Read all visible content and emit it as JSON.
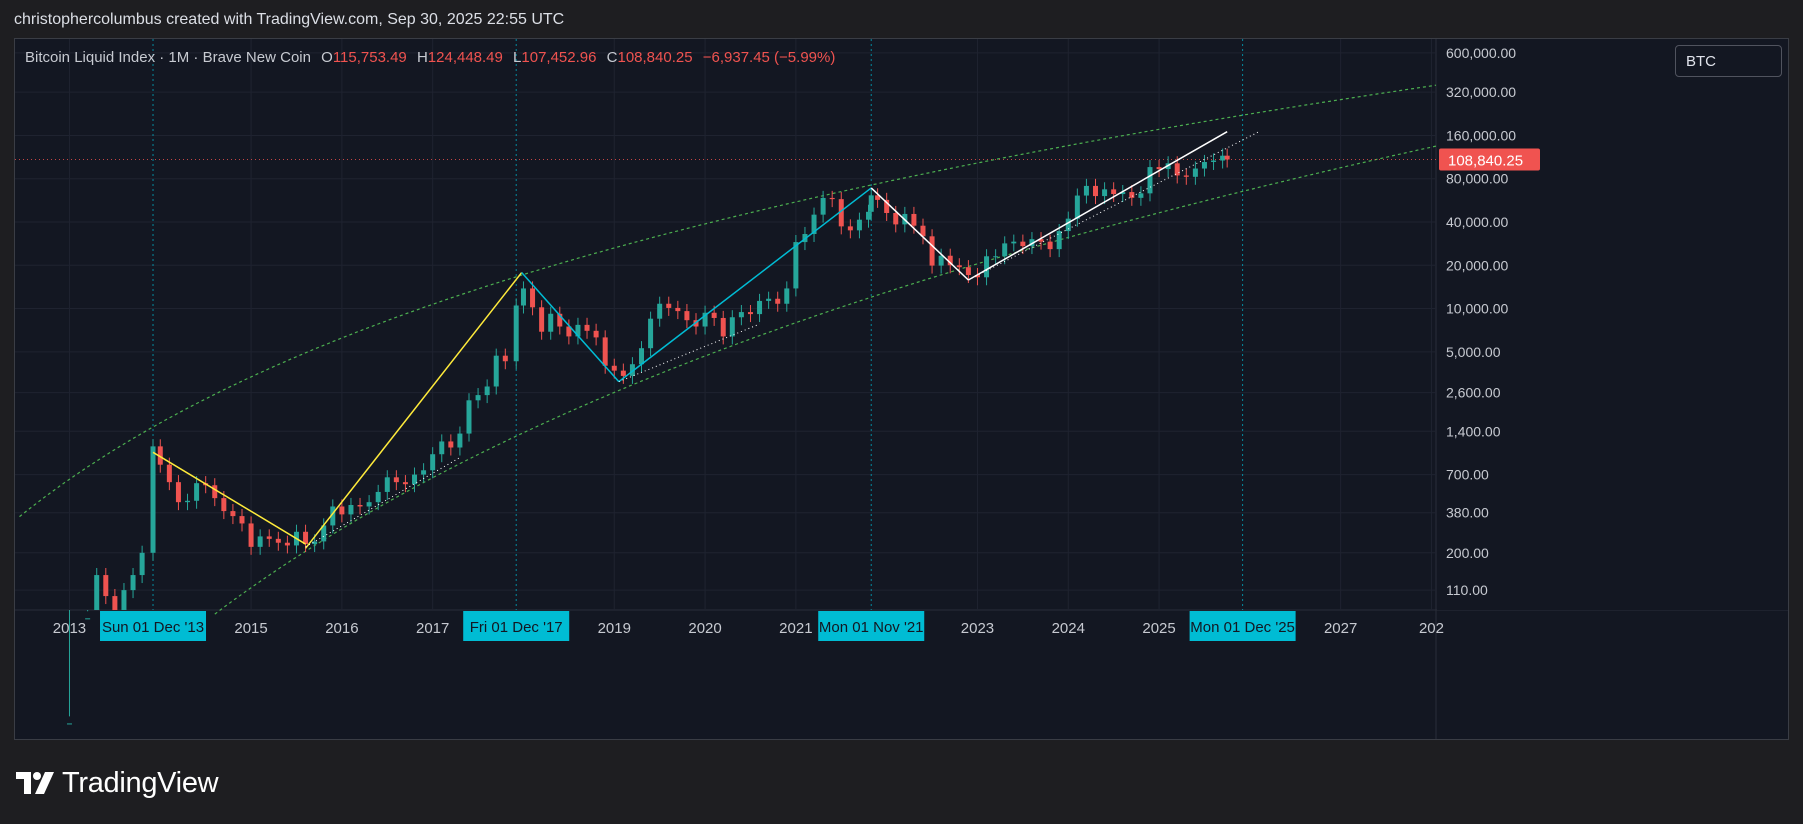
{
  "header": {
    "text": "christophercolumbus created with TradingView.com, Sep 30, 2025 22:55 UTC"
  },
  "legend": {
    "symbol": "Bitcoin Liquid Index · 1M · Brave New Coin",
    "open_label": "O",
    "open": "115,753.49",
    "high_label": "H",
    "high": "124,448.49",
    "low_label": "L",
    "low": "107,452.96",
    "close_label": "C",
    "close": "108,840.25",
    "change": "−6,937.45 (−5.99%)"
  },
  "symbol_box": "BTC",
  "footer": {
    "brand": "TradingView"
  },
  "colors": {
    "up": "#26a69a",
    "down": "#ef5350",
    "curve": "#4caf50",
    "highlight": "#00bcd4",
    "yellow": "#ffeb3b",
    "price_tag": "#f05350"
  },
  "chart_data": {
    "type": "candlestick",
    "title": "Bitcoin Liquid Index · 1M · Brave New Coin",
    "y_scale": "log",
    "y_ticks": [
      "600,000.00",
      "320,000.00",
      "160,000.00",
      "80,000.00",
      "40,000.00",
      "20,000.00",
      "10,000.00",
      "5,000.00",
      "2,600.00",
      "1,400.00",
      "700.00",
      "380.00",
      "200.00",
      "110.00"
    ],
    "y_tick_values": [
      600000,
      320000,
      160000,
      80000,
      40000,
      20000,
      10000,
      5000,
      2600,
      1400,
      700,
      380,
      200,
      110
    ],
    "x_ticks": [
      {
        "label": "2013",
        "year": 2013.0
      },
      {
        "label": "2015",
        "year": 2015.0
      },
      {
        "label": "2016",
        "year": 2016.0
      },
      {
        "label": "2017",
        "year": 2017.0
      },
      {
        "label": "2019",
        "year": 2019.0
      },
      {
        "label": "2020",
        "year": 2020.0
      },
      {
        "label": "2021",
        "year": 2021.0
      },
      {
        "label": "2023",
        "year": 2023.0
      },
      {
        "label": "2024",
        "year": 2024.0
      },
      {
        "label": "2025",
        "year": 2025.0
      },
      {
        "label": "2027",
        "year": 2027.0
      },
      {
        "label": "202",
        "year": 2028.0
      }
    ],
    "highlight_dates": [
      {
        "label": "Sun 01 Dec '13",
        "year": 2013.92
      },
      {
        "label": "Fri 01 Dec '17",
        "year": 2017.92
      },
      {
        "label": "Mon 01 Nov '21",
        "year": 2021.83
      },
      {
        "label": "Mon 01 Dec '25",
        "year": 2025.92
      }
    ],
    "last_price": {
      "label": "108,840.25",
      "value": 108840.25
    },
    "curve": {
      "a": -16.3,
      "b": 5.84,
      "upper_shift": 0.72,
      "lower_shift": -0.62
    },
    "price_path": [
      [
        2012.7,
        9
      ],
      [
        2013.0,
        13
      ],
      [
        2013.2,
        70
      ],
      [
        2013.3,
        140
      ],
      [
        2013.4,
        100
      ],
      [
        2013.5,
        80
      ],
      [
        2013.6,
        110
      ],
      [
        2013.7,
        140
      ],
      [
        2013.8,
        200
      ],
      [
        2013.92,
        1100
      ],
      [
        2014.0,
        820
      ],
      [
        2014.1,
        620
      ],
      [
        2014.2,
        450
      ],
      [
        2014.3,
        460
      ],
      [
        2014.4,
        610
      ],
      [
        2014.5,
        590
      ],
      [
        2014.6,
        480
      ],
      [
        2014.7,
        390
      ],
      [
        2014.8,
        360
      ],
      [
        2014.9,
        320
      ],
      [
        2015.0,
        220
      ],
      [
        2015.1,
        260
      ],
      [
        2015.2,
        250
      ],
      [
        2015.3,
        235
      ],
      [
        2015.4,
        225
      ],
      [
        2015.5,
        280
      ],
      [
        2015.6,
        230
      ],
      [
        2015.7,
        240
      ],
      [
        2015.8,
        310
      ],
      [
        2015.9,
        420
      ],
      [
        2016.0,
        370
      ],
      [
        2016.1,
        430
      ],
      [
        2016.2,
        420
      ],
      [
        2016.3,
        450
      ],
      [
        2016.4,
        530
      ],
      [
        2016.5,
        670
      ],
      [
        2016.6,
        620
      ],
      [
        2016.7,
        600
      ],
      [
        2016.8,
        700
      ],
      [
        2016.9,
        750
      ],
      [
        2017.0,
        970
      ],
      [
        2017.1,
        1190
      ],
      [
        2017.2,
        1080
      ],
      [
        2017.3,
        1350
      ],
      [
        2017.4,
        2300
      ],
      [
        2017.5,
        2500
      ],
      [
        2017.6,
        2870
      ],
      [
        2017.7,
        4700
      ],
      [
        2017.8,
        4300
      ],
      [
        2017.92,
        10500
      ],
      [
        2018.0,
        13800
      ],
      [
        2018.1,
        10200
      ],
      [
        2018.2,
        6900
      ],
      [
        2018.3,
        9200
      ],
      [
        2018.4,
        7500
      ],
      [
        2018.5,
        6400
      ],
      [
        2018.6,
        7700
      ],
      [
        2018.7,
        7000
      ],
      [
        2018.8,
        6300
      ],
      [
        2018.9,
        4000
      ],
      [
        2019.0,
        3700
      ],
      [
        2019.1,
        3400
      ],
      [
        2019.2,
        4100
      ],
      [
        2019.3,
        5300
      ],
      [
        2019.4,
        8500
      ],
      [
        2019.5,
        10800
      ],
      [
        2019.6,
        10100
      ],
      [
        2019.7,
        9600
      ],
      [
        2019.8,
        8300
      ],
      [
        2019.9,
        7500
      ],
      [
        2020.0,
        9350
      ],
      [
        2020.1,
        8600
      ],
      [
        2020.2,
        6400
      ],
      [
        2020.3,
        8700
      ],
      [
        2020.4,
        9450
      ],
      [
        2020.5,
        9150
      ],
      [
        2020.6,
        11300
      ],
      [
        2020.7,
        11700
      ],
      [
        2020.8,
        10800
      ],
      [
        2020.9,
        13800
      ],
      [
        2021.0,
        29000
      ],
      [
        2021.1,
        33000
      ],
      [
        2021.2,
        45000
      ],
      [
        2021.3,
        58800
      ],
      [
        2021.4,
        57700
      ],
      [
        2021.5,
        37300
      ],
      [
        2021.6,
        35000
      ],
      [
        2021.7,
        41500
      ],
      [
        2021.8,
        47100
      ],
      [
        2021.83,
        61300
      ],
      [
        2021.9,
        57000
      ],
      [
        2022.0,
        46200
      ],
      [
        2022.1,
        38500
      ],
      [
        2022.2,
        45500
      ],
      [
        2022.3,
        37700
      ],
      [
        2022.4,
        31800
      ],
      [
        2022.5,
        19900
      ],
      [
        2022.6,
        23300
      ],
      [
        2022.7,
        20000
      ],
      [
        2022.8,
        19400
      ],
      [
        2022.9,
        17100
      ],
      [
        2023.0,
        16500
      ],
      [
        2023.1,
        23100
      ],
      [
        2023.2,
        23100
      ],
      [
        2023.3,
        28400
      ],
      [
        2023.4,
        29200
      ],
      [
        2023.5,
        27200
      ],
      [
        2023.6,
        30400
      ],
      [
        2023.7,
        29200
      ],
      [
        2023.8,
        25900
      ],
      [
        2023.9,
        34600
      ],
      [
        2024.0,
        42200
      ],
      [
        2024.1,
        61100
      ],
      [
        2024.2,
        71300
      ],
      [
        2024.3,
        60600
      ],
      [
        2024.4,
        67500
      ],
      [
        2024.5,
        62600
      ],
      [
        2024.6,
        64600
      ],
      [
        2024.7,
        58900
      ],
      [
        2024.8,
        63300
      ],
      [
        2024.9,
        96400
      ],
      [
        2025.0,
        93400
      ],
      [
        2025.1,
        102400
      ],
      [
        2025.2,
        84300
      ],
      [
        2025.3,
        82500
      ],
      [
        2025.4,
        94200
      ],
      [
        2025.5,
        104600
      ],
      [
        2025.6,
        107100
      ],
      [
        2025.7,
        115700
      ],
      [
        2025.75,
        108840
      ]
    ],
    "lines": {
      "white_1": [
        [
          2013.92,
          1000
        ],
        [
          2015.6,
          230
        ]
      ],
      "yellow_1": [
        [
          2015.6,
          215
        ],
        [
          2017.98,
          17800
        ]
      ],
      "cyan_1": [
        [
          2017.98,
          17800
        ],
        [
          2019.05,
          3100
        ]
      ],
      "cyan_2": [
        [
          2019.05,
          3100
        ],
        [
          2021.83,
          69000
        ]
      ],
      "white_2": [
        [
          2021.83,
          69000
        ],
        [
          2022.9,
          15800
        ]
      ],
      "white_3": [
        [
          2022.9,
          15800
        ],
        [
          2025.75,
          170000
        ]
      ]
    },
    "dotted_lines": [
      [
        [
          2015.6,
          220
        ],
        [
          2017.3,
          920
        ]
      ],
      [
        [
          2019.05,
          3100
        ],
        [
          2020.6,
          7800
        ]
      ],
      [
        [
          2022.9,
          15800
        ],
        [
          2026.1,
          170000
        ]
      ]
    ]
  }
}
